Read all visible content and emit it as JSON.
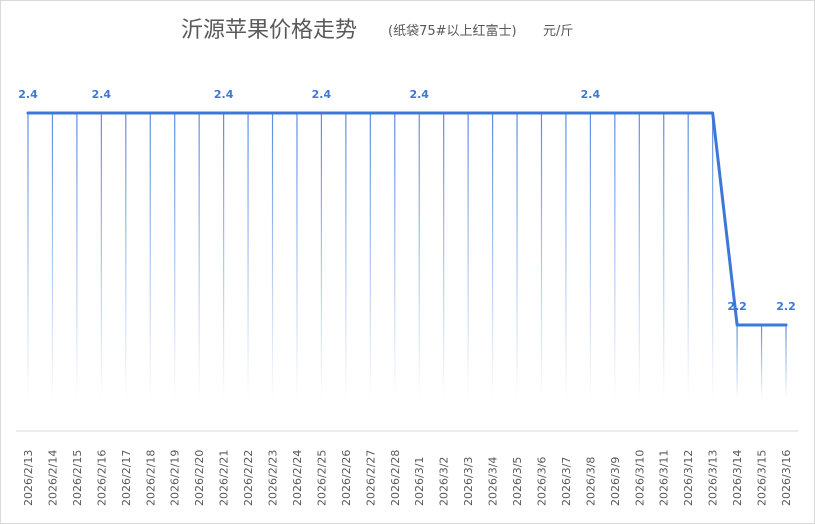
{
  "chart_data": {
    "type": "line",
    "title": "沂源苹果价格走势",
    "subtitle": "(纸袋75#以上红富士)",
    "unit": "元/斤",
    "categories": [
      "2026/2/13",
      "2026/2/14",
      "2026/2/15",
      "2026/2/16",
      "2026/2/17",
      "2026/2/18",
      "2026/2/19",
      "2026/2/20",
      "2026/2/21",
      "2026/2/22",
      "2026/2/23",
      "2026/2/24",
      "2026/2/25",
      "2026/2/26",
      "2026/2/27",
      "2026/2/28",
      "2026/3/1",
      "2026/3/2",
      "2026/3/3",
      "2026/3/4",
      "2026/3/5",
      "2026/3/6",
      "2026/3/7",
      "2026/3/8",
      "2026/3/9",
      "2026/3/10",
      "2026/3/11",
      "2026/3/12",
      "2026/3/13",
      "2026/3/14",
      "2026/3/15",
      "2026/3/16"
    ],
    "values": [
      2.4,
      2.4,
      2.4,
      2.4,
      2.4,
      2.4,
      2.4,
      2.4,
      2.4,
      2.4,
      2.4,
      2.4,
      2.4,
      2.4,
      2.4,
      2.4,
      2.4,
      2.4,
      2.4,
      2.4,
      2.4,
      2.4,
      2.4,
      2.4,
      2.4,
      2.4,
      2.4,
      2.4,
      2.4,
      2.2,
      2.2,
      2.2
    ],
    "data_label_indices": [
      0,
      3,
      8,
      12,
      16,
      23,
      29,
      31
    ],
    "grid": "vertical",
    "legend": "none",
    "line_color": "#3c78d8",
    "label_color": "#3c78d8"
  }
}
